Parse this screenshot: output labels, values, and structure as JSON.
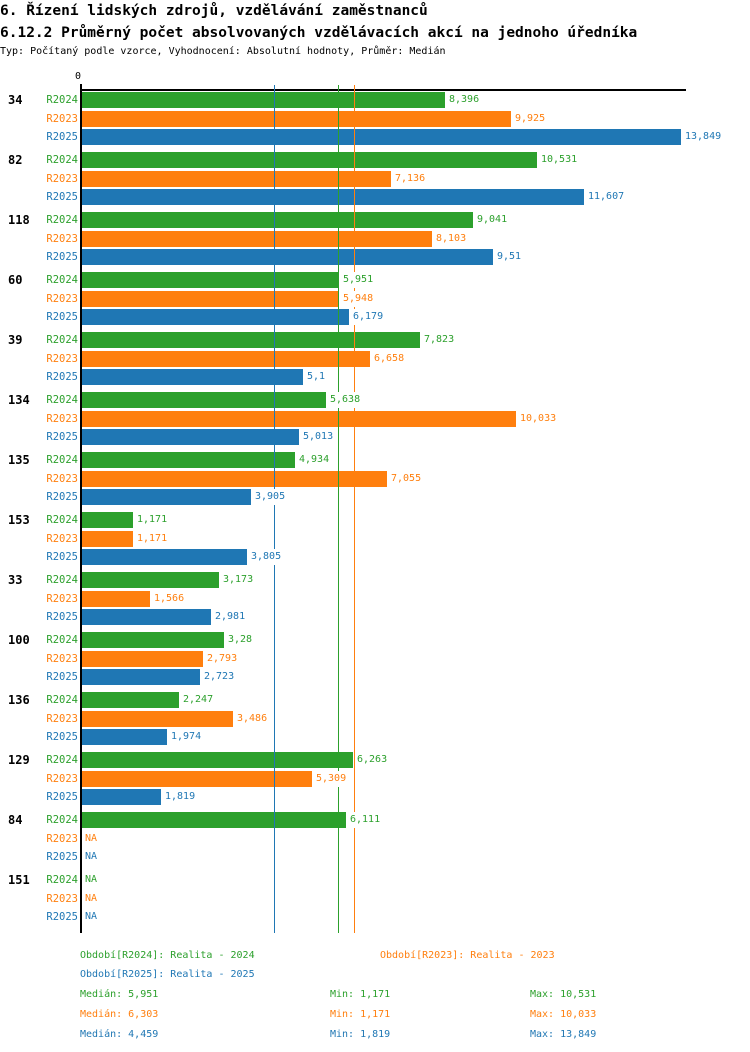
{
  "title": "6. Řízení lidských zdrojů, vzdělávání zaměstnanců",
  "subtitle": "6.12.2 Průměrný počet absolvovaných vzdělávacích akcí na jednoho úředníka",
  "meta": "Typ: Počítaný podle vzorce, Vyhodnocení: Absolutní hodnoty, Průměr: Medián",
  "colors": {
    "R2024": "#2ca02c",
    "R2023": "#ff7f0e",
    "R2025": "#1f77b4",
    "axis": "#000000",
    "background": "#ffffff"
  },
  "chart_data": {
    "type": "bar",
    "orientation": "horizontal",
    "origin_label": "0",
    "xlim": [
      0,
      14
    ],
    "grid": false,
    "series_order": [
      "R2024",
      "R2023",
      "R2025"
    ],
    "na_text": "NA",
    "groups": [
      {
        "label": "34",
        "rows": [
          {
            "series": "R2024",
            "value": 8.396,
            "display": "8,396"
          },
          {
            "series": "R2023",
            "value": 9.925,
            "display": "9,925"
          },
          {
            "series": "R2025",
            "value": 13.849,
            "display": "13,849"
          }
        ]
      },
      {
        "label": "82",
        "rows": [
          {
            "series": "R2024",
            "value": 10.531,
            "display": "10,531"
          },
          {
            "series": "R2023",
            "value": 7.136,
            "display": "7,136"
          },
          {
            "series": "R2025",
            "value": 11.607,
            "display": "11,607"
          }
        ]
      },
      {
        "label": "118",
        "rows": [
          {
            "series": "R2024",
            "value": 9.041,
            "display": "9,041"
          },
          {
            "series": "R2023",
            "value": 8.103,
            "display": "8,103"
          },
          {
            "series": "R2025",
            "value": 9.51,
            "display": "9,51"
          }
        ]
      },
      {
        "label": "60",
        "rows": [
          {
            "series": "R2024",
            "value": 5.951,
            "display": "5,951"
          },
          {
            "series": "R2023",
            "value": 5.948,
            "display": "5,948"
          },
          {
            "series": "R2025",
            "value": 6.179,
            "display": "6,179"
          }
        ]
      },
      {
        "label": "39",
        "rows": [
          {
            "series": "R2024",
            "value": 7.823,
            "display": "7,823"
          },
          {
            "series": "R2023",
            "value": 6.658,
            "display": "6,658"
          },
          {
            "series": "R2025",
            "value": 5.1,
            "display": "5,1"
          }
        ]
      },
      {
        "label": "134",
        "rows": [
          {
            "series": "R2024",
            "value": 5.638,
            "display": "5,638"
          },
          {
            "series": "R2023",
            "value": 10.033,
            "display": "10,033"
          },
          {
            "series": "R2025",
            "value": 5.013,
            "display": "5,013"
          }
        ]
      },
      {
        "label": "135",
        "rows": [
          {
            "series": "R2024",
            "value": 4.934,
            "display": "4,934"
          },
          {
            "series": "R2023",
            "value": 7.055,
            "display": "7,055"
          },
          {
            "series": "R2025",
            "value": 3.905,
            "display": "3,905"
          }
        ]
      },
      {
        "label": "153",
        "rows": [
          {
            "series": "R2024",
            "value": 1.171,
            "display": "1,171"
          },
          {
            "series": "R2023",
            "value": 1.171,
            "display": "1,171"
          },
          {
            "series": "R2025",
            "value": 3.805,
            "display": "3,805"
          }
        ]
      },
      {
        "label": "33",
        "rows": [
          {
            "series": "R2024",
            "value": 3.173,
            "display": "3,173"
          },
          {
            "series": "R2023",
            "value": 1.566,
            "display": "1,566"
          },
          {
            "series": "R2025",
            "value": 2.981,
            "display": "2,981"
          }
        ]
      },
      {
        "label": "100",
        "rows": [
          {
            "series": "R2024",
            "value": 3.28,
            "display": "3,28"
          },
          {
            "series": "R2023",
            "value": 2.793,
            "display": "2,793"
          },
          {
            "series": "R2025",
            "value": 2.723,
            "display": "2,723"
          }
        ]
      },
      {
        "label": "136",
        "rows": [
          {
            "series": "R2024",
            "value": 2.247,
            "display": "2,247"
          },
          {
            "series": "R2023",
            "value": 3.486,
            "display": "3,486"
          },
          {
            "series": "R2025",
            "value": 1.974,
            "display": "1,974"
          }
        ]
      },
      {
        "label": "129",
        "rows": [
          {
            "series": "R2024",
            "value": 6.263,
            "display": "6,263"
          },
          {
            "series": "R2023",
            "value": 5.309,
            "display": "5,309"
          },
          {
            "series": "R2025",
            "value": 1.819,
            "display": "1,819"
          }
        ]
      },
      {
        "label": "84",
        "rows": [
          {
            "series": "R2024",
            "value": 6.111,
            "display": "6,111"
          },
          {
            "series": "R2023",
            "value": null,
            "display": "NA"
          },
          {
            "series": "R2025",
            "value": null,
            "display": "NA"
          }
        ]
      },
      {
        "label": "151",
        "rows": [
          {
            "series": "R2024",
            "value": null,
            "display": "NA"
          },
          {
            "series": "R2023",
            "value": null,
            "display": "NA"
          },
          {
            "series": "R2025",
            "value": null,
            "display": "NA"
          }
        ]
      }
    ],
    "medians": {
      "R2024": 5.951,
      "R2023": 6.303,
      "R2025": 4.459
    }
  },
  "legend": {
    "entries": [
      {
        "series": "R2024",
        "label": "Období[R2024]: Realita - 2024"
      },
      {
        "series": "R2023",
        "label": "Období[R2023]: Realita - 2023"
      },
      {
        "series": "R2025",
        "label": "Období[R2025]: Realita - 2025"
      }
    ],
    "stats": [
      {
        "series": "R2024",
        "median": "Medián: 5,951",
        "min": "Min: 1,171",
        "max": "Max: 10,531"
      },
      {
        "series": "R2023",
        "median": "Medián: 6,303",
        "min": "Min: 1,171",
        "max": "Max: 10,033"
      },
      {
        "series": "R2025",
        "median": "Medián: 4,459",
        "min": "Min: 1,819",
        "max": "Max: 13,849"
      }
    ]
  }
}
